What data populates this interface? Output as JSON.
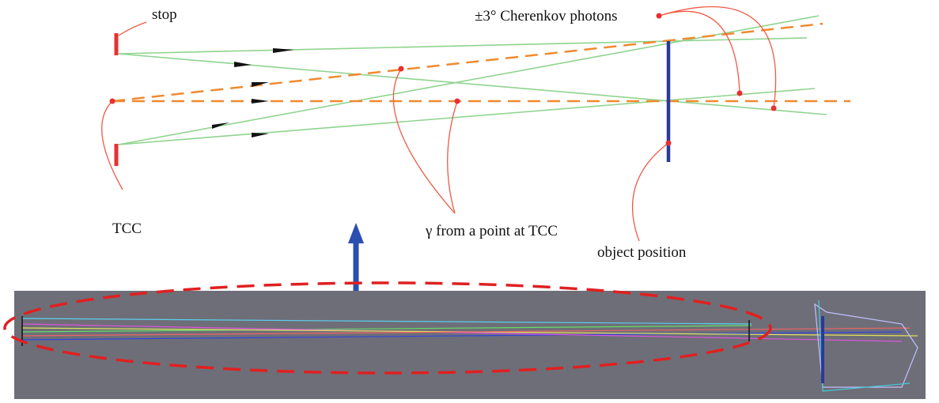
{
  "labels": {
    "stop": "stop",
    "cherenkov": "±3° Cherenkov photons",
    "tcc": "TCC",
    "gamma": "γ from a point at TCC",
    "object": "object position"
  }
}
